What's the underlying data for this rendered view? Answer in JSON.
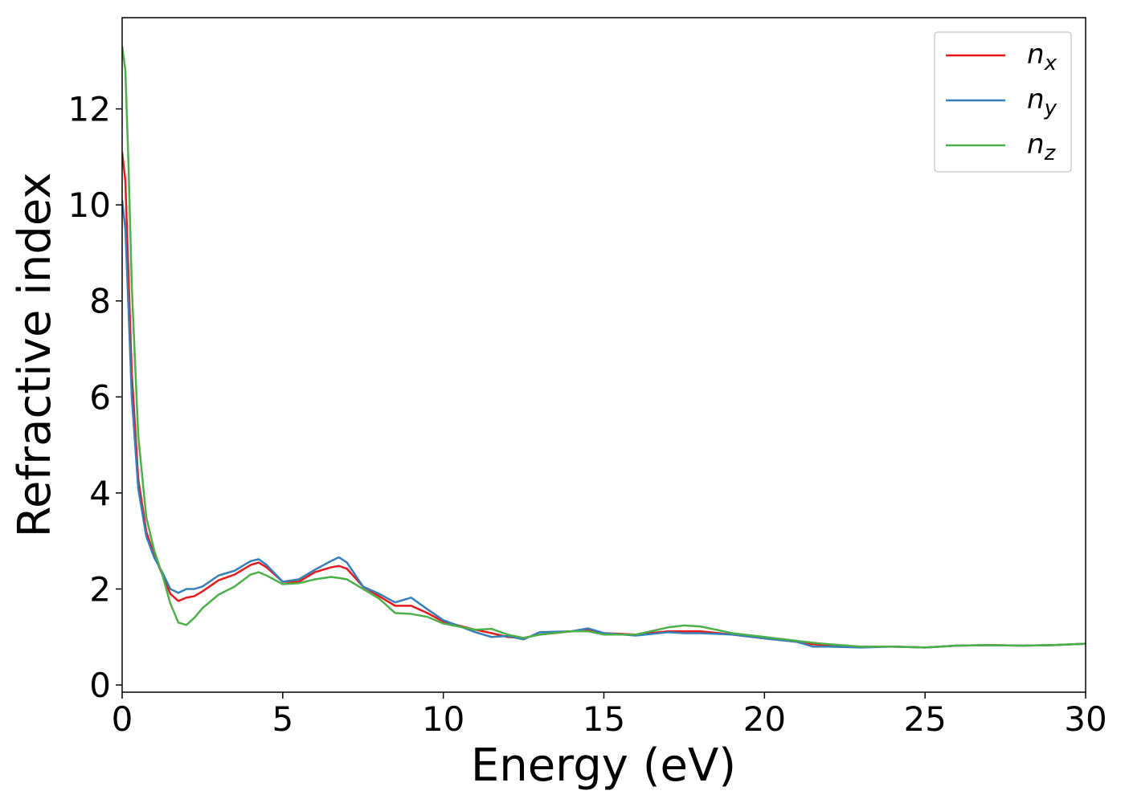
{
  "chart_data": {
    "type": "line",
    "x_label": "Energy (eV)",
    "y_label": "Refractive index",
    "x": [
      0,
      0.1,
      0.2,
      0.3,
      0.5,
      0.75,
      1,
      1.25,
      1.5,
      1.75,
      2,
      2.25,
      2.5,
      3,
      3.5,
      4,
      4.25,
      4.5,
      5,
      5.5,
      6,
      6.5,
      6.75,
      7,
      7.5,
      8,
      8.5,
      9,
      9.5,
      10,
      11,
      11.5,
      12,
      12.5,
      13,
      14,
      14.5,
      15,
      16,
      17,
      17.5,
      18,
      19,
      20,
      21,
      21.5,
      22,
      23,
      24,
      25,
      26,
      27,
      28,
      29,
      30
    ],
    "series": [
      {
        "name": "n_x",
        "color": "#e41a1c",
        "values": [
          11.1,
          10.5,
          8.5,
          6.5,
          4.3,
          3.2,
          2.7,
          2.3,
          1.9,
          1.75,
          1.82,
          1.85,
          1.95,
          2.18,
          2.3,
          2.5,
          2.55,
          2.45,
          2.15,
          2.15,
          2.35,
          2.45,
          2.48,
          2.42,
          2.05,
          1.85,
          1.65,
          1.65,
          1.5,
          1.32,
          1.15,
          1.08,
          1.0,
          0.98,
          1.05,
          1.12,
          1.15,
          1.08,
          1.05,
          1.12,
          1.12,
          1.12,
          1.05,
          0.97,
          0.9,
          0.85,
          0.83,
          0.8,
          0.8,
          0.78,
          0.82,
          0.83,
          0.82,
          0.83,
          0.86
        ]
      },
      {
        "name": "n_y",
        "color": "#377eb8",
        "values": [
          10.1,
          9.5,
          7.8,
          6.0,
          4.1,
          3.1,
          2.65,
          2.35,
          2.0,
          1.92,
          2.0,
          2.0,
          2.05,
          2.28,
          2.38,
          2.58,
          2.62,
          2.5,
          2.15,
          2.2,
          2.4,
          2.58,
          2.66,
          2.55,
          2.05,
          1.9,
          1.72,
          1.82,
          1.58,
          1.35,
          1.1,
          1.0,
          1.02,
          0.95,
          1.1,
          1.12,
          1.18,
          1.08,
          1.03,
          1.1,
          1.08,
          1.08,
          1.05,
          0.97,
          0.9,
          0.8,
          0.8,
          0.78,
          0.8,
          0.78,
          0.82,
          0.83,
          0.82,
          0.83,
          0.86
        ]
      },
      {
        "name": "n_z",
        "color": "#4daf4a",
        "values": [
          13.3,
          12.8,
          10.8,
          8.3,
          5.2,
          3.5,
          2.8,
          2.3,
          1.7,
          1.3,
          1.25,
          1.4,
          1.6,
          1.88,
          2.05,
          2.3,
          2.35,
          2.28,
          2.1,
          2.12,
          2.2,
          2.25,
          2.23,
          2.2,
          2.0,
          1.8,
          1.5,
          1.48,
          1.42,
          1.28,
          1.15,
          1.17,
          1.05,
          0.98,
          1.05,
          1.12,
          1.12,
          1.05,
          1.05,
          1.2,
          1.24,
          1.22,
          1.08,
          1.0,
          0.92,
          0.88,
          0.85,
          0.8,
          0.8,
          0.78,
          0.82,
          0.83,
          0.82,
          0.83,
          0.86
        ]
      }
    ],
    "xlim": [
      0,
      30
    ],
    "ylim": [
      -0.15,
      13.9
    ],
    "xticks": [
      0,
      5,
      10,
      15,
      20,
      25,
      30
    ],
    "yticks": [
      0,
      2,
      4,
      6,
      8,
      10,
      12
    ],
    "grid": false,
    "legend": "upper-right"
  }
}
